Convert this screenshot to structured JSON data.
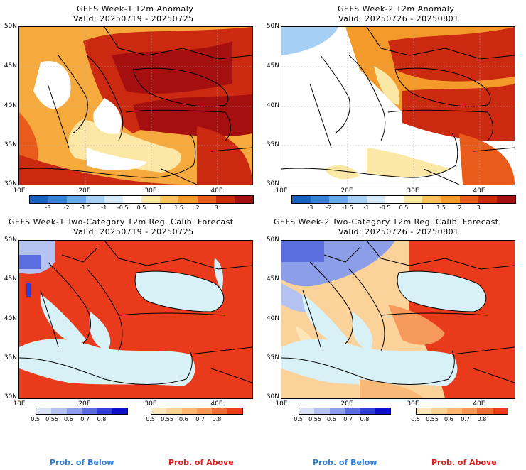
{
  "panels": [
    {
      "title": "GEFS Week-1 T2m Anomaly",
      "valid": "Valid: 20250719 - 20250725"
    },
    {
      "title": "GEFS Week-2 T2m Anomaly",
      "valid": "Valid: 20250726 - 20250801"
    },
    {
      "title": "GEFS Week-1 Two-Category T2m Reg. Calib. Forecast",
      "valid": "Valid: 20250719 - 20250725"
    },
    {
      "title": "GEFS Week-2 Two-Category T2m Reg. Calib. Forecast",
      "valid": "Valid: 20250726 - 20250801"
    }
  ],
  "lat_labels": [
    "50N",
    "45N",
    "40N",
    "35N",
    "30N"
  ],
  "lon_labels": [
    "10E",
    "20E",
    "30E",
    "40E"
  ],
  "anomaly_colorbar": {
    "labels": [
      "-3",
      "-2",
      "-1.5",
      "-1",
      "-0.5",
      "0.5",
      "1",
      "1.5",
      "2",
      "3"
    ],
    "colors": [
      "#1e5fbf",
      "#3a7fd6",
      "#6aa7e8",
      "#a6cff5",
      "#d4eafa",
      "#ffffff",
      "#fbe8a6",
      "#f9c35b",
      "#f39a2a",
      "#e85b1a",
      "#cc2a10",
      "#a50f0f"
    ]
  },
  "prob_colorbar": {
    "below_labels": [
      "0.5",
      "0.55",
      "0.6",
      "0.7",
      "0.8"
    ],
    "below_colors": [
      "#d8e0f8",
      "#b4c2f2",
      "#8c9ee8",
      "#5b6ee0",
      "#2f3fd8",
      "#0d0fcf"
    ],
    "above_labels": [
      "0.5",
      "0.55",
      "0.6",
      "0.7",
      "0.8"
    ],
    "above_colors": [
      "#fde7b8",
      "#fbd29a",
      "#f8b877",
      "#f59a5a",
      "#ef6b3a",
      "#ea3a1c"
    ]
  },
  "footer": {
    "below_left": "Prob. of Below",
    "above_left": "Prob. of Above",
    "below_right": "Prob. of Below",
    "above_right": "Prob. of Above"
  },
  "colors": {
    "below_text": "#2e7fd6",
    "above_text": "#e21a1a",
    "sea_prob": "#d8f1f7",
    "sea_anom": "#ffffff"
  }
}
